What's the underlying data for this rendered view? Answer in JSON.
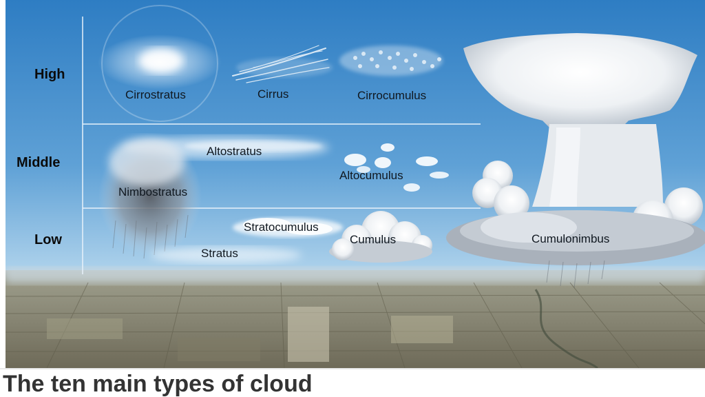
{
  "levels": {
    "high": "High",
    "middle": "Middle",
    "low": "Low"
  },
  "clouds": {
    "cirrostratus": "Cirrostratus",
    "cirrus": "Cirrus",
    "cirrocumulus": "Cirrocumulus",
    "altostratus": "Altostratus",
    "altocumulus": "Altocumulus",
    "nimbostratus": "Nimbostratus",
    "stratocumulus": "Stratocumulus",
    "stratus": "Stratus",
    "cumulus": "Cumulus",
    "cumulonimbus": "Cumulonimbus"
  },
  "caption": "The ten main types of cloud",
  "colors": {
    "sky_top": "#2f7fc4",
    "sky_bottom": "#bcd9ee",
    "ground": "#8a8470",
    "caption": "#333333"
  }
}
